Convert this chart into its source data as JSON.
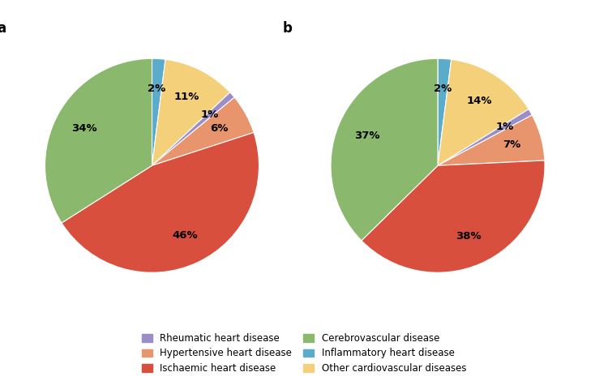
{
  "chart_a": {
    "label": "a",
    "values": [
      2,
      11,
      1,
      6,
      46,
      34
    ],
    "colors": [
      "#5aacca",
      "#f5d07a",
      "#9b8dc8",
      "#e8956d",
      "#d94f3d",
      "#8ab96e"
    ]
  },
  "chart_b": {
    "label": "b",
    "values": [
      2,
      14,
      1,
      7,
      38,
      37
    ],
    "colors": [
      "#5aacca",
      "#f5d07a",
      "#9b8dc8",
      "#e8956d",
      "#d94f3d",
      "#8ab96e"
    ]
  },
  "legend_labels": [
    "Rheumatic heart disease",
    "Hypertensive heart disease",
    "Ischaemic heart disease",
    "Cerebrovascular disease",
    "Inflammatory heart disease",
    "Other cardiovascular diseases"
  ],
  "legend_colors": [
    "#9b8dc8",
    "#e8956d",
    "#d94f3d",
    "#8ab96e",
    "#5aacca",
    "#f5d07a"
  ],
  "bg_color": "#ffffff",
  "label_fontsize": 9.5,
  "panel_fontsize": 12
}
